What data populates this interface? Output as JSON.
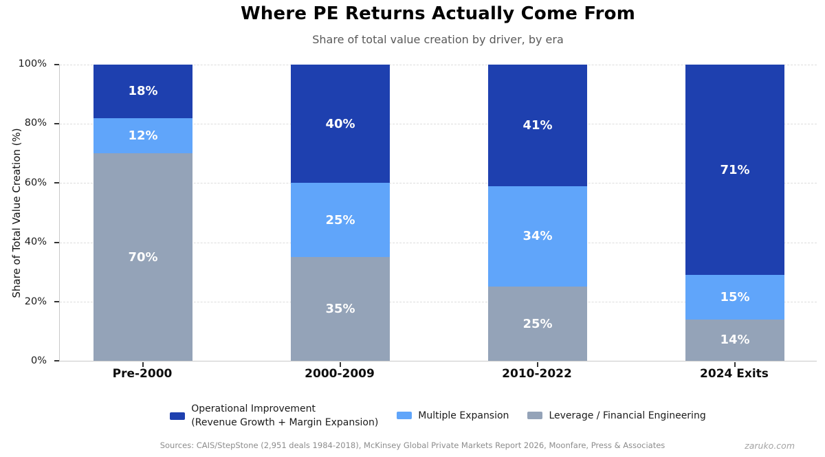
{
  "chart_data": {
    "type": "bar",
    "stacked": true,
    "title": "Where PE Returns Actually Come From",
    "subtitle": "Share of total value creation by driver, by era",
    "ylabel": "Share of Total Value Creation (%)",
    "ylim": [
      0,
      100
    ],
    "yticks": [
      0,
      20,
      40,
      60,
      80,
      100
    ],
    "ytick_suffix": "%",
    "grid": "horizontal-dashed",
    "legend_position": "bottom",
    "categories": [
      "Pre-2000",
      "2000-2009",
      "2010-2022",
      "2024 Exits"
    ],
    "series": [
      {
        "name": "Leverage / Financial Engineering",
        "color": "#94a3b8",
        "values": [
          70,
          35,
          25,
          14
        ]
      },
      {
        "name": "Multiple Expansion",
        "color": "#60a5fa",
        "values": [
          12,
          25,
          34,
          15
        ]
      },
      {
        "name": "Operational Improvement (Revenue Growth + Margin Expansion)",
        "color": "#1e40af",
        "values": [
          18,
          40,
          41,
          71
        ]
      }
    ],
    "value_label_suffix": "%"
  },
  "legend": {
    "items": [
      {
        "lines": [
          "Operational Improvement",
          "(Revenue Growth + Margin Expansion)"
        ],
        "color": "#1e40af"
      },
      {
        "lines": [
          "Multiple Expansion"
        ],
        "color": "#60a5fa"
      },
      {
        "lines": [
          "Leverage / Financial Engineering"
        ],
        "color": "#94a3b8"
      }
    ]
  },
  "footer": {
    "sources": "Sources: CAIS/StepStone (2,951 deals 1984-2018), McKinsey Global Private Markets Report 2026, Moonfare, Press & Associates",
    "watermark": "zaruko.com"
  },
  "colors": {
    "operational_improvement": "#1e40af",
    "multiple_expansion": "#60a5fa",
    "leverage": "#94a3b8",
    "gridline": "#dcdcdc",
    "axis_spine": "#c9c9c9"
  }
}
